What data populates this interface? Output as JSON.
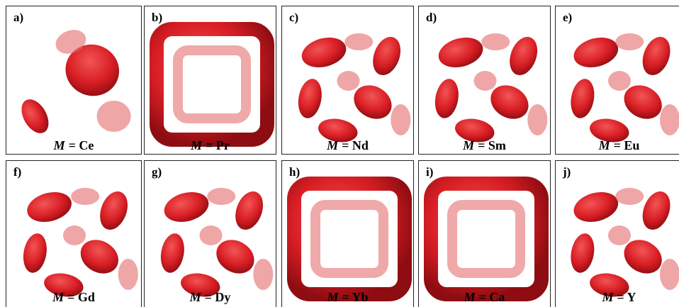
{
  "panels": [
    {
      "label": "a)",
      "caption": [
        "M",
        "= Ce"
      ]
    },
    {
      "label": "b)",
      "caption": [
        "M",
        "= Pr"
      ]
    },
    {
      "label": "c)",
      "caption": [
        "M",
        "= Nd"
      ]
    },
    {
      "label": "d)",
      "caption": [
        "M",
        "= Sm"
      ]
    },
    {
      "label": "e)",
      "caption": [
        "M",
        "= Eu"
      ]
    },
    {
      "label": "f)",
      "caption": [
        "M",
        "= Gd"
      ]
    },
    {
      "label": "g)",
      "caption": [
        "M",
        "= Dy"
      ]
    },
    {
      "label": "h)",
      "caption": [
        "M",
        "= Yb"
      ]
    },
    {
      "label": "i)",
      "caption": [
        "M",
        "= Ca"
      ]
    },
    {
      "label": "j)",
      "caption": [
        "M",
        "= Y"
      ]
    }
  ]
}
